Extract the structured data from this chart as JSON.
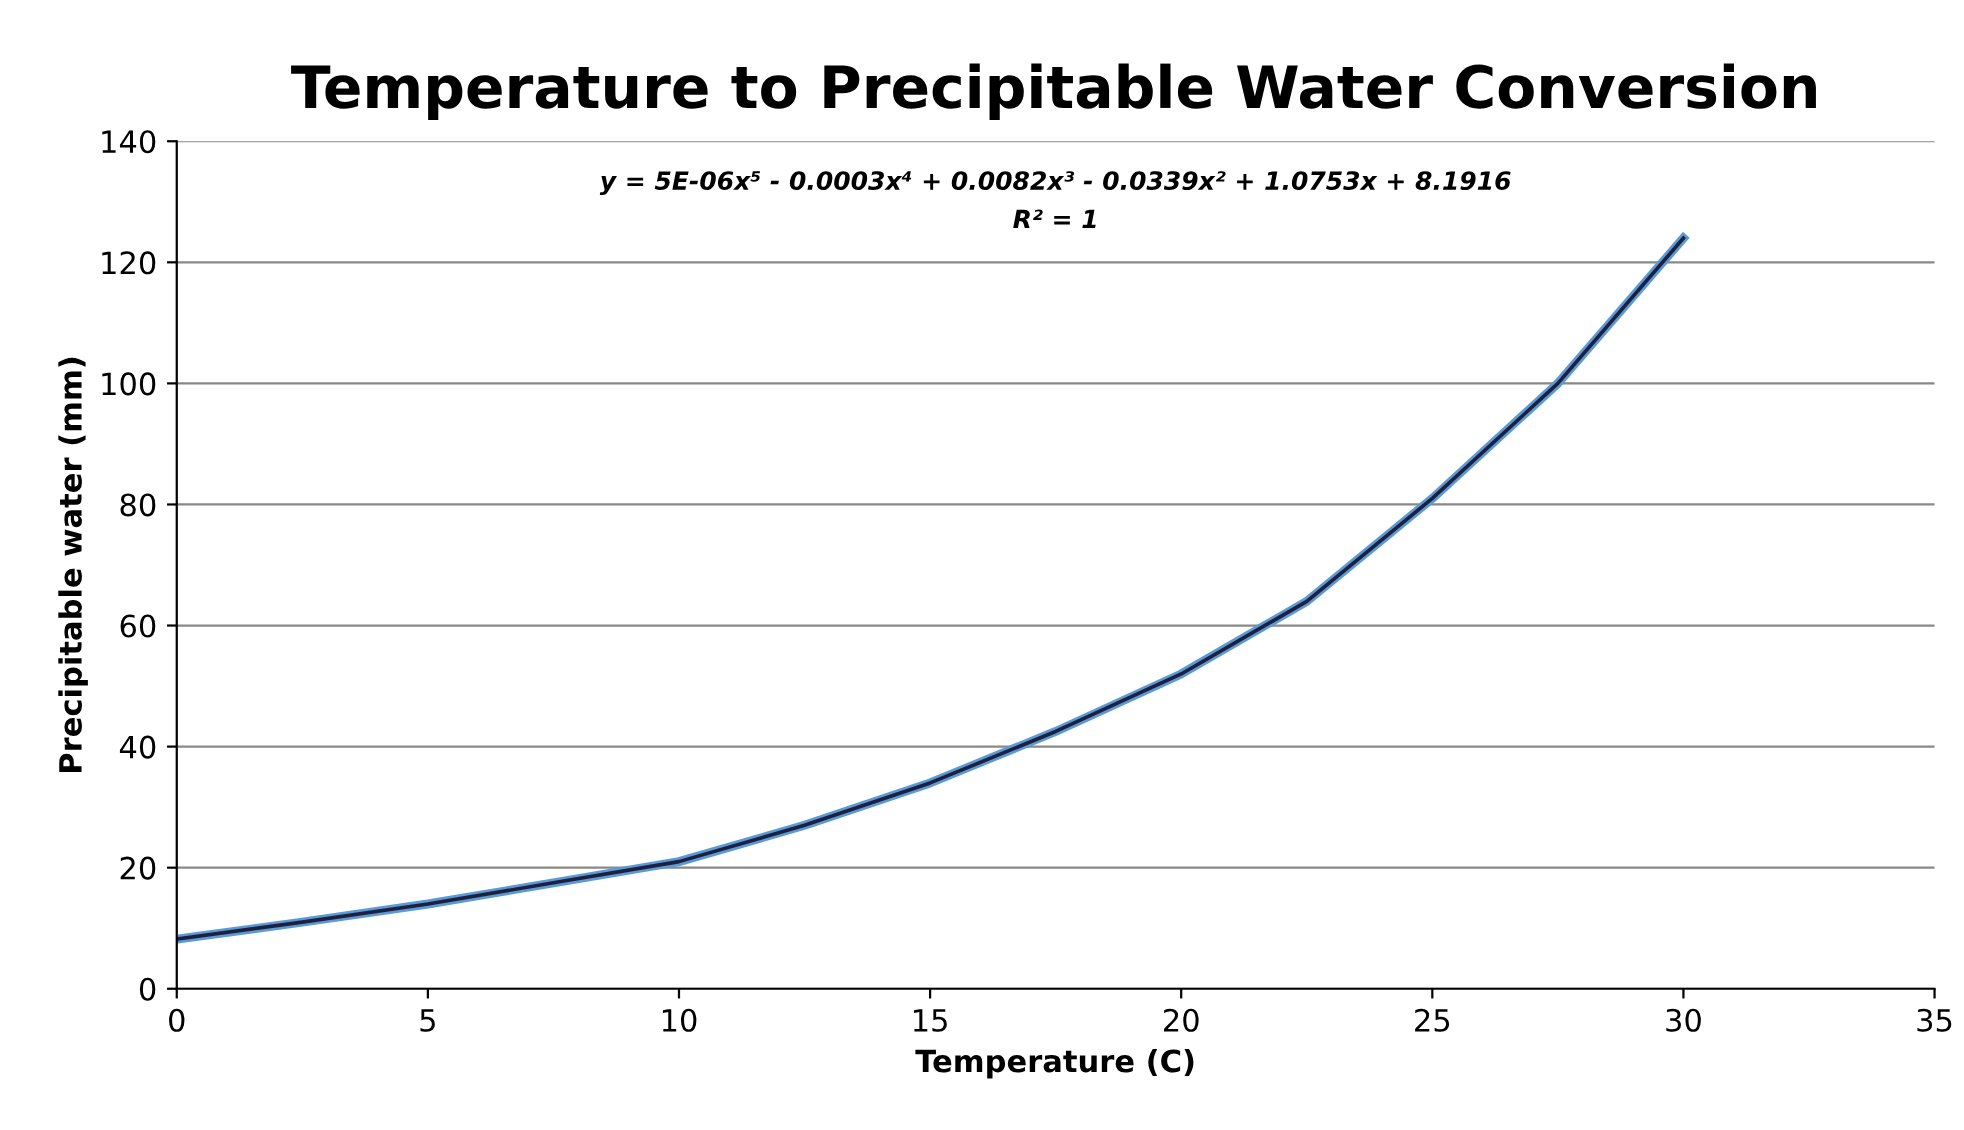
{
  "chart_data": {
    "type": "line",
    "title": "Temperature to Precipitable Water Conversion",
    "xlabel": "Temperature (C)",
    "ylabel": "Precipitable water (mm)",
    "annotations": [
      "y = 5E-06x⁵ - 0.0003x⁴ + 0.0082x³ - 0.0339x² + 1.0753x + 8.1916",
      "R² = 1"
    ],
    "series": [
      {
        "color": "#5b9bd5",
        "x": [
          0,
          2.5,
          5,
          7.5,
          10,
          12.5,
          15,
          17.5,
          20,
          22.5,
          25,
          27.5,
          30
        ],
        "values": [
          8.2,
          11,
          14,
          17.5,
          21,
          27,
          34,
          42.5,
          52,
          64,
          81,
          100,
          124
        ]
      },
      {
        "color": "#1f1f3f",
        "x": [
          0,
          2.5,
          5,
          7.5,
          10,
          12.5,
          15,
          17.5,
          20,
          22.5,
          25,
          27.5,
          30
        ],
        "values": [
          8.2,
          11,
          14,
          17.5,
          21,
          27,
          34,
          42.5,
          52,
          64,
          81,
          100,
          124
        ]
      }
    ],
    "xlim": [
      0,
      35
    ],
    "xticks": [
      0,
      5,
      10,
      15,
      20,
      25,
      30,
      35
    ],
    "ylim": [
      0,
      140
    ],
    "yticks": [
      0,
      20,
      40,
      60,
      80,
      100,
      120,
      140
    ],
    "grid": "y",
    "marker": "none",
    "line_style": "solid"
  }
}
